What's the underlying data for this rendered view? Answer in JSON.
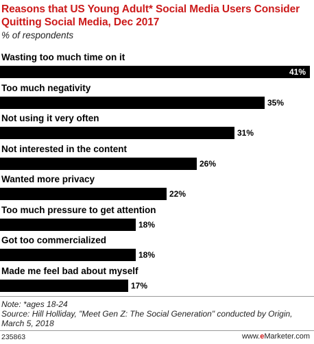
{
  "header": {
    "title": "Reasons that US Young Adult* Social Media Users Consider Quitting Social Media, Dec 2017",
    "subtitle": "% of respondents"
  },
  "chart_data": {
    "type": "bar",
    "orientation": "horizontal",
    "categories": [
      "Wasting too much time on it",
      "Too much negativity",
      "Not using it very often",
      "Not interested in the content",
      "Wanted more privacy",
      "Too much pressure to get attention",
      "Got too commercialized",
      "Made me feel bad about myself"
    ],
    "values": [
      41,
      35,
      31,
      26,
      22,
      18,
      18,
      17
    ],
    "value_labels": [
      "41%",
      "35%",
      "31%",
      "26%",
      "22%",
      "18%",
      "18%",
      "17%"
    ],
    "bar_color": "#000000",
    "grid": false,
    "legend": "none"
  },
  "footer": {
    "note": "Note: *ages 18-24",
    "source": "Source: Hill Holliday, \"Meet Gen Z: The Social Generation\" conducted by Origin, March 5, 2018",
    "chart_id": "235863",
    "brand_prefix": "www.",
    "brand_e": "e",
    "brand_rest": "Marketer.com"
  },
  "colors": {
    "title": "#cc1a1a",
    "bar": "#000000",
    "brand_accent": "#cc1a1a"
  }
}
